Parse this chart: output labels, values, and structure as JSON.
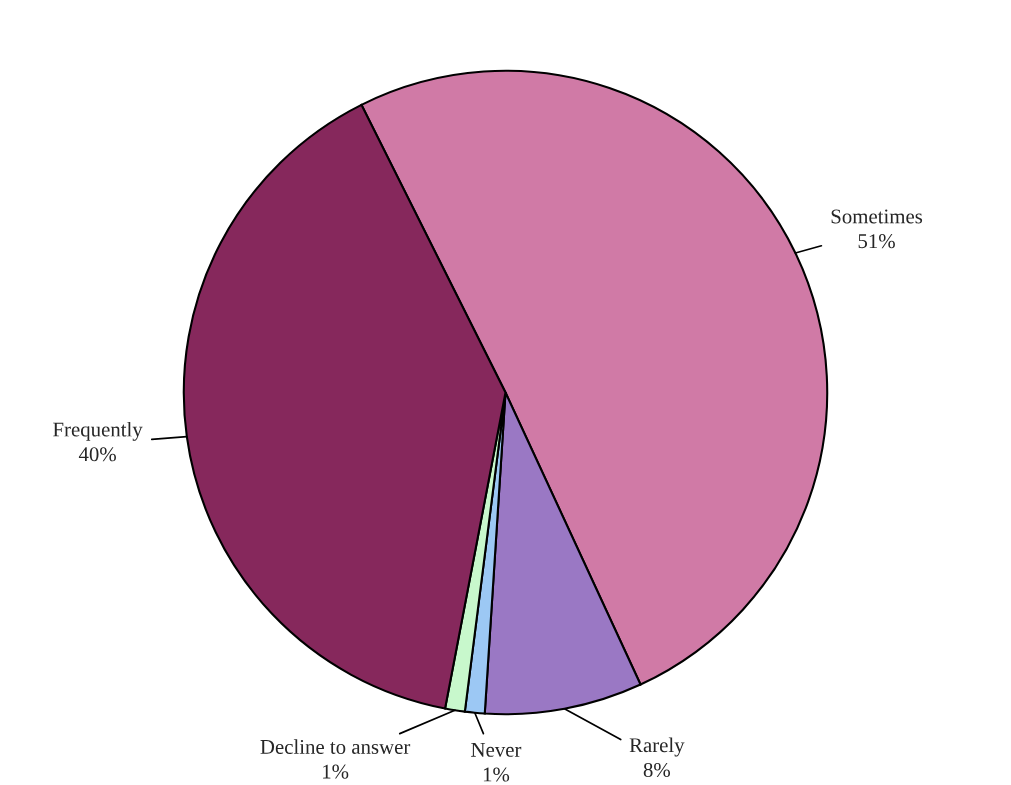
{
  "chart_data": {
    "type": "pie",
    "categories": [
      "Sometimes",
      "Rarely",
      "Never",
      "Decline to answer",
      "Frequently"
    ],
    "values": [
      51,
      8,
      1,
      1,
      40
    ],
    "value_labels": [
      "51%",
      "8%",
      "1%",
      "1%",
      "40%"
    ],
    "colors": [
      "#d07aa6",
      "#9a78c4",
      "#9cc8f4",
      "#c8f8cc",
      "#86285c"
    ],
    "legend": false
  }
}
